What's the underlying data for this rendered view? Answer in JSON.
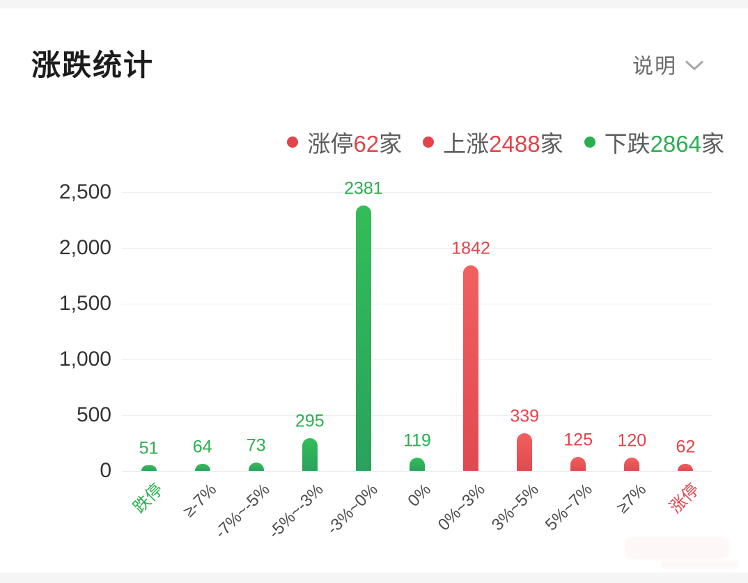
{
  "header": {
    "title": "涨跌统计",
    "help_label": "说明"
  },
  "icons": {
    "help_chevron": "chevron-down"
  },
  "legend": {
    "items": [
      {
        "label": "涨停",
        "value": "62",
        "suffix": "家",
        "direction": "up"
      },
      {
        "label": "上涨",
        "value": "2488",
        "suffix": "家",
        "direction": "up"
      },
      {
        "label": "下跌",
        "value": "2864",
        "suffix": "家",
        "direction": "down"
      }
    ]
  },
  "chart_data": {
    "type": "bar",
    "title": "涨跌统计",
    "categories": [
      "跌停",
      "≥-7%",
      "-7%~-5%",
      "-5%~-3%",
      "-3%~0%",
      "0%",
      "0%~3%",
      "3%~5%",
      "5%~7%",
      "≥7%",
      "涨停"
    ],
    "values": [
      51,
      64,
      73,
      295,
      2381,
      119,
      1842,
      339,
      125,
      120,
      62
    ],
    "directions": [
      "down",
      "down",
      "down",
      "down",
      "down",
      "down",
      "up",
      "up",
      "up",
      "up",
      "up"
    ],
    "category_label_directions": [
      "down",
      null,
      null,
      null,
      null,
      null,
      null,
      null,
      null,
      null,
      "up"
    ],
    "y_ticks": [
      "0",
      "500",
      "1,000",
      "1,500",
      "2,000",
      "2,500"
    ],
    "y_tick_values": [
      0,
      500,
      1000,
      1500,
      2000,
      2500
    ],
    "ylim": [
      0,
      2500
    ],
    "grid": true,
    "legend_position": "top-right",
    "value_labels": true,
    "xlabel": "",
    "ylabel": ""
  },
  "palette": {
    "up": "#e5434a",
    "down": "#28b04f",
    "up_bar_top": "#f2605f",
    "up_bar_bottom": "#e14950",
    "down_bar_top": "#33bd58",
    "down_bar_bottom": "#2aa25d",
    "grid_line": "#eeeeee",
    "axis_line": "#e2e2e2",
    "y_label": "#333333",
    "x_label": "#4d4d4d",
    "legend_text": "#5c5c5c",
    "title": "#1c1c1c",
    "help_text": "#6b6b6b",
    "chevron": "#a8a8a8",
    "card_bg": "#ffffff",
    "frame_bg": "#f5f5f5"
  }
}
